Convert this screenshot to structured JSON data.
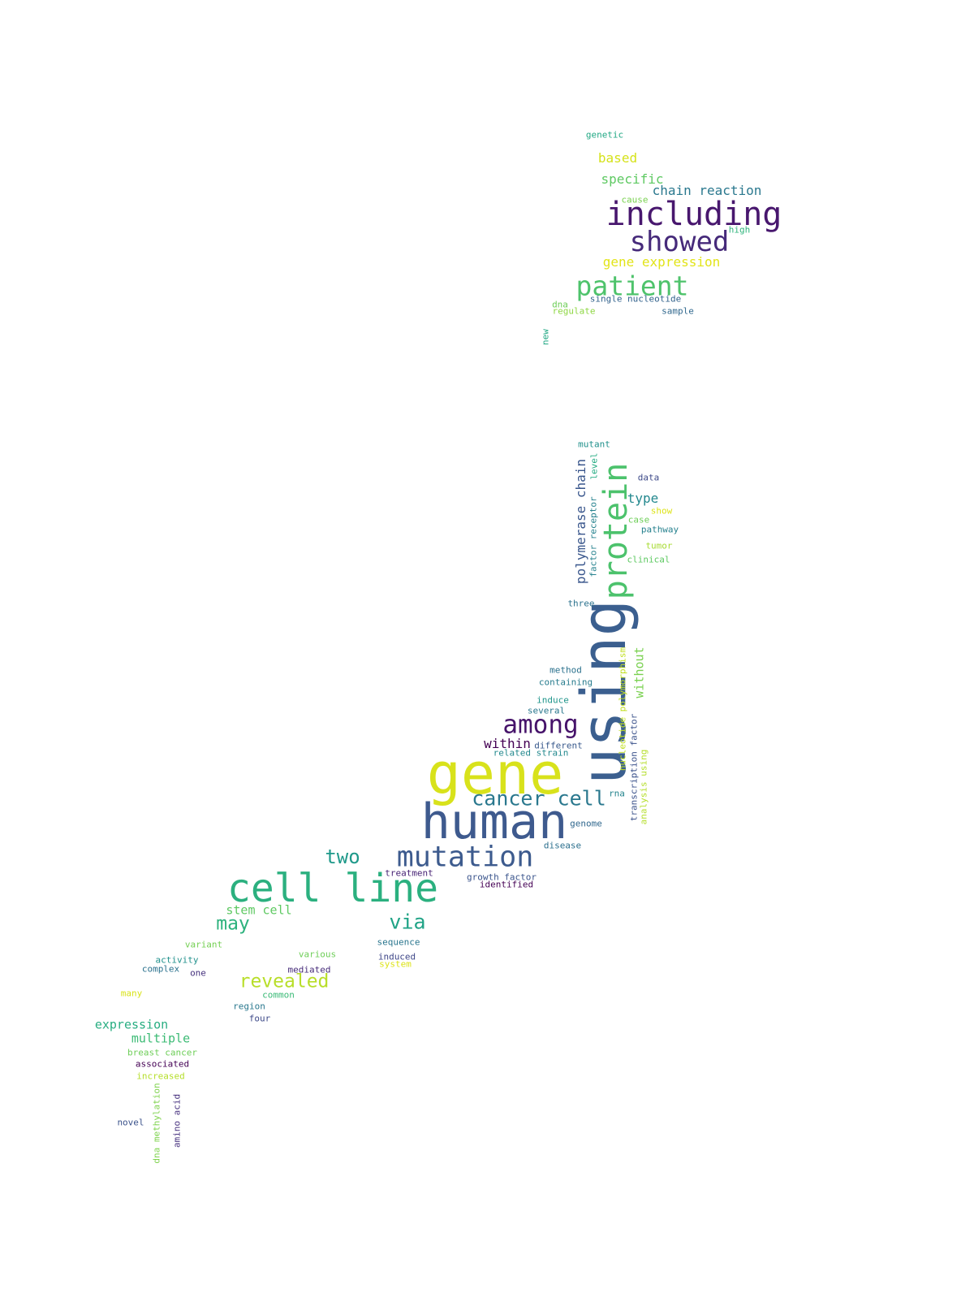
{
  "colors": {
    "background": "#ffffff",
    "palette": [
      "#440154",
      "#482878",
      "#3e4989",
      "#31688e",
      "#26828e",
      "#1f9e89",
      "#35b779",
      "#6ece58",
      "#b5de2b",
      "#dce319"
    ]
  },
  "words": [
    {
      "text": "using",
      "color": "#3b5f8f",
      "vertical": true
    },
    {
      "text": "gene",
      "color": "#d8e21b"
    },
    {
      "text": "human",
      "color": "#3e5a8e"
    },
    {
      "text": "cell line",
      "color": "#2bb07f"
    },
    {
      "text": "including",
      "color": "#48176e"
    },
    {
      "text": "protein",
      "color": "#4cc26c",
      "vertical": true
    },
    {
      "text": "mutation",
      "color": "#3d5b8e"
    },
    {
      "text": "showed",
      "color": "#462a7a"
    },
    {
      "text": "patient",
      "color": "#4ec36b"
    },
    {
      "text": "among",
      "color": "#46136a"
    },
    {
      "text": "cancer cell",
      "color": "#2a788e"
    },
    {
      "text": "two",
      "color": "#1f998a"
    },
    {
      "text": "via",
      "color": "#20a386"
    },
    {
      "text": "may",
      "color": "#2db27d"
    },
    {
      "text": "revealed",
      "color": "#b8de29"
    },
    {
      "text": "polymerase chain",
      "color": "#39568c",
      "vertical": true
    },
    {
      "text": "chain reaction",
      "color": "#2a788e"
    },
    {
      "text": "specific",
      "color": "#5ec962"
    },
    {
      "text": "based",
      "color": "#d5e21a"
    },
    {
      "text": "gene expression",
      "color": "#e2e418"
    },
    {
      "text": "type",
      "color": "#23888e"
    },
    {
      "text": "without",
      "color": "#7ad151",
      "vertical": true
    },
    {
      "text": "within",
      "color": "#440154"
    },
    {
      "text": "stem cell",
      "color": "#5ec962"
    },
    {
      "text": "expression",
      "color": "#27ad81"
    },
    {
      "text": "multiple",
      "color": "#3cbb75"
    },
    {
      "text": "genetic",
      "color": "#22a884"
    },
    {
      "text": "cause",
      "color": "#7ad151"
    },
    {
      "text": "high",
      "color": "#2fb47c"
    },
    {
      "text": "single nucleotide",
      "color": "#33638d"
    },
    {
      "text": "dna",
      "color": "#6ece58"
    },
    {
      "text": "regulate",
      "color": "#8fd744"
    },
    {
      "text": "sample",
      "color": "#31688e"
    },
    {
      "text": "new",
      "color": "#22a884",
      "vertical": true
    },
    {
      "text": "mutant",
      "color": "#21918c"
    },
    {
      "text": "level",
      "color": "#25ac82",
      "vertical": true
    },
    {
      "text": "data",
      "color": "#3e4a89"
    },
    {
      "text": "factor receptor",
      "color": "#26828e",
      "vertical": true
    },
    {
      "text": "show",
      "color": "#dde318"
    },
    {
      "text": "case",
      "color": "#6ece58"
    },
    {
      "text": "pathway",
      "color": "#26818e"
    },
    {
      "text": "tumor",
      "color": "#a8db34"
    },
    {
      "text": "clinical",
      "color": "#5ec962"
    },
    {
      "text": "three",
      "color": "#2c728e"
    },
    {
      "text": "method",
      "color": "#2c728e"
    },
    {
      "text": "containing",
      "color": "#287c8e"
    },
    {
      "text": "induce",
      "color": "#1f958b"
    },
    {
      "text": "several",
      "color": "#2a788e"
    },
    {
      "text": "nucleotide polymorphism",
      "color": "#c2df23",
      "vertical": true
    },
    {
      "text": "transcription factor",
      "color": "#3b528b",
      "vertical": true
    },
    {
      "text": "analysis using",
      "color": "#b5de2b",
      "vertical": true
    },
    {
      "text": "different",
      "color": "#38598c"
    },
    {
      "text": "related strain",
      "color": "#23898e"
    },
    {
      "text": "rna",
      "color": "#25858e"
    },
    {
      "text": "genome",
      "color": "#31688e"
    },
    {
      "text": "disease",
      "color": "#2d708e"
    },
    {
      "text": "treatment",
      "color": "#482475"
    },
    {
      "text": "growth factor",
      "color": "#3a548c"
    },
    {
      "text": "identified",
      "color": "#440154"
    },
    {
      "text": "sequence",
      "color": "#2a768e"
    },
    {
      "text": "induced",
      "color": "#3f4788"
    },
    {
      "text": "system",
      "color": "#dde318"
    },
    {
      "text": "variant",
      "color": "#75d054"
    },
    {
      "text": "various",
      "color": "#6ece58"
    },
    {
      "text": "activity",
      "color": "#21918c"
    },
    {
      "text": "complex",
      "color": "#2c728e"
    },
    {
      "text": "one",
      "color": "#46327e"
    },
    {
      "text": "mediated",
      "color": "#472c7a"
    },
    {
      "text": "many",
      "color": "#d8e219"
    },
    {
      "text": "common",
      "color": "#3aba76"
    },
    {
      "text": "region",
      "color": "#2a788e"
    },
    {
      "text": "four",
      "color": "#3e4a89"
    },
    {
      "text": "breast cancer",
      "color": "#6ece58"
    },
    {
      "text": "associated",
      "color": "#440154"
    },
    {
      "text": "increased",
      "color": "#b5de2b"
    },
    {
      "text": "novel",
      "color": "#3b528b"
    },
    {
      "text": "dna methylation",
      "color": "#7fd34e",
      "vertical": true
    },
    {
      "text": "amino acid",
      "color": "#46307e",
      "vertical": true
    }
  ]
}
